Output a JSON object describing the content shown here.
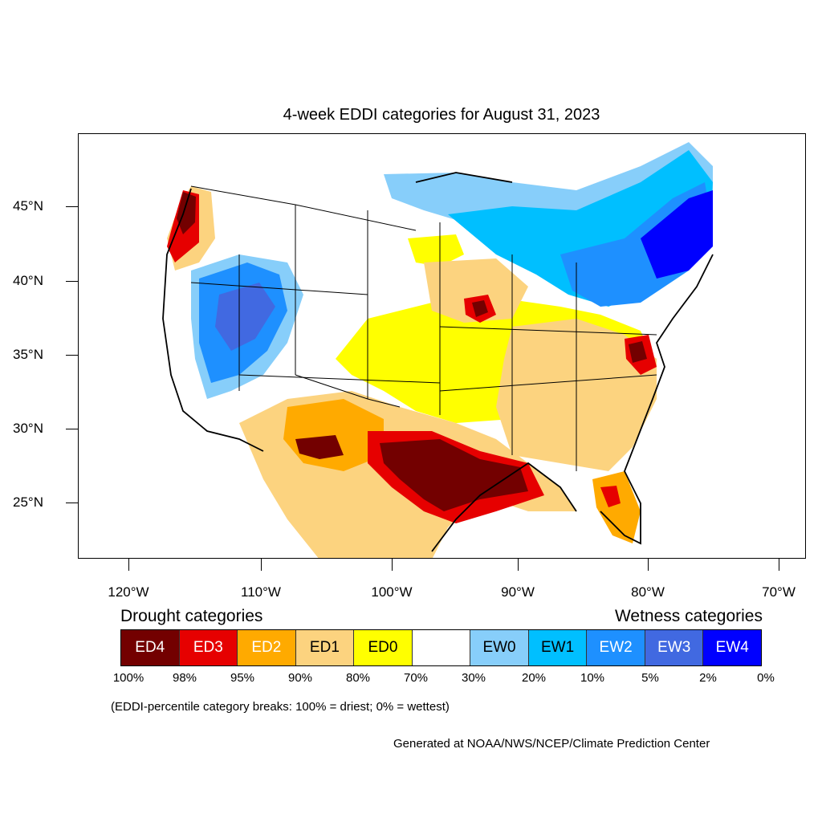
{
  "title": "4-week EDDI categories for August 31, 2023",
  "lat_labels": [
    "45°N",
    "40°N",
    "35°N",
    "30°N",
    "25°N"
  ],
  "lon_labels": [
    "120°W",
    "110°W",
    "100°W",
    "90°W",
    "80°W",
    "70°W"
  ],
  "legend": {
    "drought_heading": "Drought categories",
    "wetness_heading": "Wetness categories",
    "categories": [
      {
        "label": "ED4",
        "color": "#730000",
        "text_color": "#ffffff"
      },
      {
        "label": "ED3",
        "color": "#e60000",
        "text_color": "#ffffff"
      },
      {
        "label": "ED2",
        "color": "#ffaa00",
        "text_color": "#ffffff"
      },
      {
        "label": "ED1",
        "color": "#fcd37f",
        "text_color": "#000000"
      },
      {
        "label": "ED0",
        "color": "#ffff00",
        "text_color": "#000000"
      },
      {
        "label": "",
        "color": "#ffffff",
        "text_color": "#000000"
      },
      {
        "label": "EW0",
        "color": "#87cefa",
        "text_color": "#000000"
      },
      {
        "label": "EW1",
        "color": "#00bfff",
        "text_color": "#000000"
      },
      {
        "label": "EW2",
        "color": "#1e90ff",
        "text_color": "#ffffff"
      },
      {
        "label": "EW3",
        "color": "#4169e1",
        "text_color": "#ffffff"
      },
      {
        "label": "EW4",
        "color": "#0000ff",
        "text_color": "#ffffff"
      }
    ],
    "percentiles": [
      "100%",
      "98%",
      "95%",
      "90%",
      "80%",
      "70%",
      "30%",
      "20%",
      "10%",
      "5%",
      "2%",
      "0%"
    ]
  },
  "footnote": "(EDDI-percentile category breaks: 100% = driest; 0% = wettest)",
  "credit": "Generated at NOAA/NWS/NCEP/Climate Prediction Center"
}
